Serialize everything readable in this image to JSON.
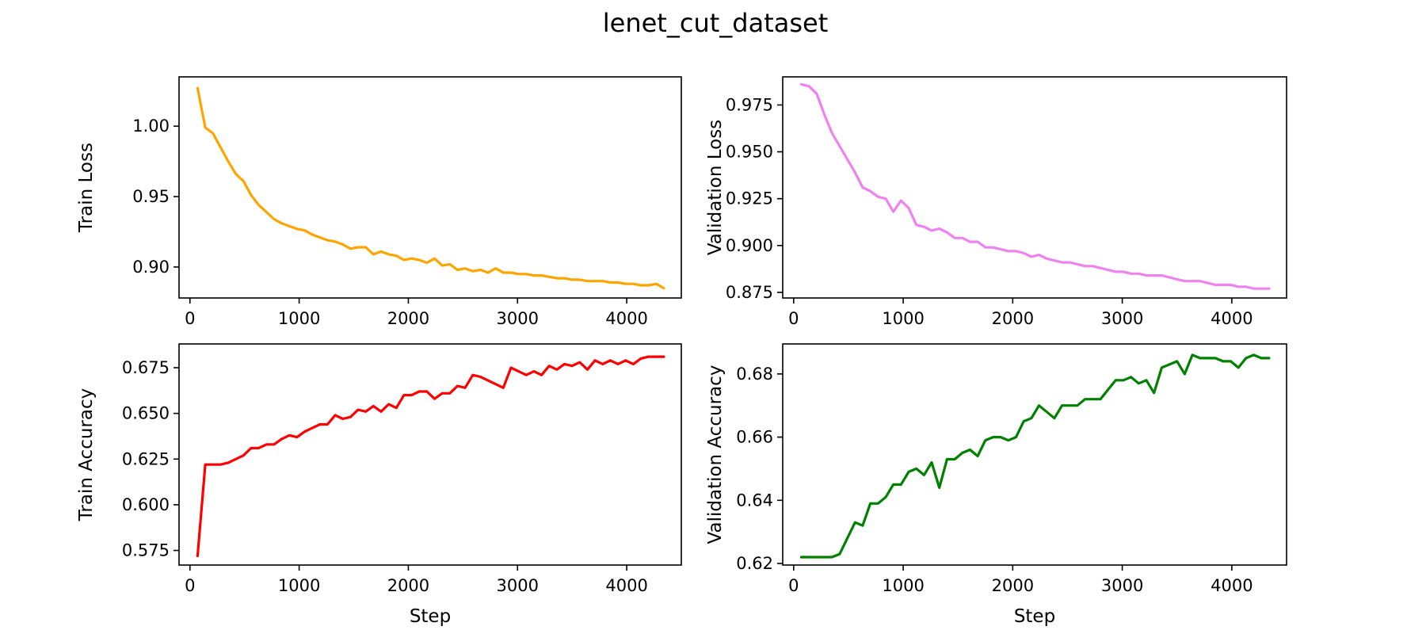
{
  "figure": {
    "title": "lenet_cut_dataset"
  },
  "chart_data": [
    {
      "type": "line",
      "id": "train_loss",
      "xlabel": "",
      "ylabel": "Train Loss",
      "xlim": [
        -100,
        4500
      ],
      "ylim": [
        0.878,
        1.035
      ],
      "xticks": [
        0,
        1000,
        2000,
        3000,
        4000
      ],
      "xtick_labels": [
        "0",
        "1000",
        "2000",
        "3000",
        "4000"
      ],
      "yticks": [
        0.9,
        0.95,
        1.0
      ],
      "ytick_labels": [
        "0.90",
        "0.95",
        "1.00"
      ],
      "color": "#ffa500",
      "x": [
        70,
        140,
        210,
        280,
        350,
        420,
        490,
        560,
        630,
        700,
        770,
        840,
        910,
        980,
        1050,
        1120,
        1190,
        1260,
        1330,
        1400,
        1470,
        1540,
        1610,
        1680,
        1750,
        1820,
        1890,
        1960,
        2030,
        2100,
        2170,
        2240,
        2310,
        2380,
        2450,
        2520,
        2590,
        2660,
        2730,
        2800,
        2870,
        2940,
        3010,
        3080,
        3150,
        3220,
        3290,
        3360,
        3430,
        3500,
        3570,
        3640,
        3710,
        3780,
        3850,
        3920,
        3990,
        4060,
        4130,
        4200,
        4270,
        4340
      ],
      "y": [
        1.027,
        0.999,
        0.995,
        0.985,
        0.975,
        0.966,
        0.961,
        0.951,
        0.944,
        0.939,
        0.934,
        0.931,
        0.929,
        0.927,
        0.926,
        0.923,
        0.921,
        0.919,
        0.918,
        0.916,
        0.913,
        0.914,
        0.914,
        0.909,
        0.911,
        0.909,
        0.908,
        0.905,
        0.906,
        0.905,
        0.903,
        0.906,
        0.901,
        0.902,
        0.898,
        0.899,
        0.897,
        0.898,
        0.896,
        0.899,
        0.896,
        0.896,
        0.895,
        0.895,
        0.894,
        0.894,
        0.893,
        0.892,
        0.892,
        0.891,
        0.891,
        0.89,
        0.89,
        0.89,
        0.889,
        0.889,
        0.888,
        0.888,
        0.887,
        0.887,
        0.888,
        0.885
      ]
    },
    {
      "type": "line",
      "id": "validation_loss",
      "xlabel": "",
      "ylabel": "Validation Loss",
      "xlim": [
        -100,
        4500
      ],
      "ylim": [
        0.872,
        0.99
      ],
      "xticks": [
        0,
        1000,
        2000,
        3000,
        4000
      ],
      "xtick_labels": [
        "0",
        "1000",
        "2000",
        "3000",
        "4000"
      ],
      "yticks": [
        0.875,
        0.9,
        0.925,
        0.95,
        0.975
      ],
      "ytick_labels": [
        "0.875",
        "0.900",
        "0.925",
        "0.950",
        "0.975"
      ],
      "color": "#ee82ee",
      "x": [
        70,
        140,
        210,
        280,
        350,
        420,
        490,
        560,
        630,
        700,
        770,
        840,
        910,
        980,
        1050,
        1120,
        1190,
        1260,
        1330,
        1400,
        1470,
        1540,
        1610,
        1680,
        1750,
        1820,
        1890,
        1960,
        2030,
        2100,
        2170,
        2240,
        2310,
        2380,
        2450,
        2520,
        2590,
        2660,
        2730,
        2800,
        2870,
        2940,
        3010,
        3080,
        3150,
        3220,
        3290,
        3360,
        3430,
        3500,
        3570,
        3640,
        3710,
        3780,
        3850,
        3920,
        3990,
        4060,
        4130,
        4200,
        4270,
        4340
      ],
      "y": [
        0.986,
        0.985,
        0.981,
        0.97,
        0.96,
        0.953,
        0.946,
        0.939,
        0.931,
        0.929,
        0.926,
        0.925,
        0.918,
        0.924,
        0.92,
        0.911,
        0.91,
        0.908,
        0.909,
        0.907,
        0.904,
        0.904,
        0.902,
        0.902,
        0.899,
        0.899,
        0.898,
        0.897,
        0.897,
        0.896,
        0.894,
        0.895,
        0.893,
        0.892,
        0.891,
        0.891,
        0.89,
        0.889,
        0.889,
        0.888,
        0.887,
        0.886,
        0.886,
        0.885,
        0.885,
        0.884,
        0.884,
        0.884,
        0.883,
        0.882,
        0.881,
        0.881,
        0.881,
        0.88,
        0.879,
        0.879,
        0.879,
        0.878,
        0.878,
        0.877,
        0.877,
        0.877
      ]
    },
    {
      "type": "line",
      "id": "train_accuracy",
      "xlabel": "Step",
      "ylabel": "Train Accuracy",
      "xlim": [
        -100,
        4500
      ],
      "ylim": [
        0.567,
        0.688
      ],
      "xticks": [
        0,
        1000,
        2000,
        3000,
        4000
      ],
      "xtick_labels": [
        "0",
        "1000",
        "2000",
        "3000",
        "4000"
      ],
      "yticks": [
        0.575,
        0.6,
        0.625,
        0.65,
        0.675
      ],
      "ytick_labels": [
        "0.575",
        "0.600",
        "0.625",
        "0.650",
        "0.675"
      ],
      "color": "#ff0000",
      "x": [
        70,
        140,
        210,
        280,
        350,
        420,
        490,
        560,
        630,
        700,
        770,
        840,
        910,
        980,
        1050,
        1120,
        1190,
        1260,
        1330,
        1400,
        1470,
        1540,
        1610,
        1680,
        1750,
        1820,
        1890,
        1960,
        2030,
        2100,
        2170,
        2240,
        2310,
        2380,
        2450,
        2520,
        2590,
        2660,
        2730,
        2800,
        2870,
        2940,
        3010,
        3080,
        3150,
        3220,
        3290,
        3360,
        3430,
        3500,
        3570,
        3640,
        3710,
        3780,
        3850,
        3920,
        3990,
        4060,
        4130,
        4200,
        4270,
        4340
      ],
      "y": [
        0.572,
        0.622,
        0.622,
        0.622,
        0.623,
        0.625,
        0.627,
        0.631,
        0.631,
        0.633,
        0.633,
        0.636,
        0.638,
        0.637,
        0.64,
        0.642,
        0.644,
        0.644,
        0.649,
        0.647,
        0.648,
        0.652,
        0.651,
        0.654,
        0.651,
        0.655,
        0.653,
        0.66,
        0.66,
        0.662,
        0.662,
        0.658,
        0.661,
        0.661,
        0.665,
        0.664,
        0.671,
        0.67,
        0.668,
        0.666,
        0.664,
        0.675,
        0.673,
        0.671,
        0.673,
        0.671,
        0.676,
        0.674,
        0.677,
        0.676,
        0.678,
        0.674,
        0.679,
        0.677,
        0.679,
        0.677,
        0.679,
        0.677,
        0.68,
        0.681,
        0.681,
        0.681
      ]
    },
    {
      "type": "line",
      "id": "validation_accuracy",
      "xlabel": "Step",
      "ylabel": "Validation Accuracy",
      "xlim": [
        -100,
        4500
      ],
      "ylim": [
        0.6195,
        0.6895
      ],
      "xticks": [
        0,
        1000,
        2000,
        3000,
        4000
      ],
      "xtick_labels": [
        "0",
        "1000",
        "2000",
        "3000",
        "4000"
      ],
      "yticks": [
        0.62,
        0.64,
        0.66,
        0.68
      ],
      "ytick_labels": [
        "0.62",
        "0.64",
        "0.66",
        "0.68"
      ],
      "color": "#008000",
      "x": [
        70,
        140,
        210,
        280,
        350,
        420,
        490,
        560,
        630,
        700,
        770,
        840,
        910,
        980,
        1050,
        1120,
        1190,
        1260,
        1330,
        1400,
        1470,
        1540,
        1610,
        1680,
        1750,
        1820,
        1890,
        1960,
        2030,
        2100,
        2170,
        2240,
        2310,
        2380,
        2450,
        2520,
        2590,
        2660,
        2730,
        2800,
        2870,
        2940,
        3010,
        3080,
        3150,
        3220,
        3290,
        3360,
        3430,
        3500,
        3570,
        3640,
        3710,
        3780,
        3850,
        3920,
        3990,
        4060,
        4130,
        4200,
        4270,
        4340
      ],
      "y": [
        0.622,
        0.622,
        0.622,
        0.622,
        0.622,
        0.623,
        0.628,
        0.633,
        0.632,
        0.639,
        0.639,
        0.641,
        0.645,
        0.645,
        0.649,
        0.65,
        0.648,
        0.652,
        0.644,
        0.653,
        0.653,
        0.655,
        0.656,
        0.654,
        0.659,
        0.66,
        0.66,
        0.659,
        0.66,
        0.665,
        0.666,
        0.67,
        0.668,
        0.666,
        0.67,
        0.67,
        0.67,
        0.672,
        0.672,
        0.672,
        0.675,
        0.678,
        0.678,
        0.679,
        0.677,
        0.678,
        0.674,
        0.682,
        0.683,
        0.684,
        0.68,
        0.686,
        0.685,
        0.685,
        0.685,
        0.684,
        0.684,
        0.682,
        0.685,
        0.686,
        0.685,
        0.685
      ]
    }
  ]
}
